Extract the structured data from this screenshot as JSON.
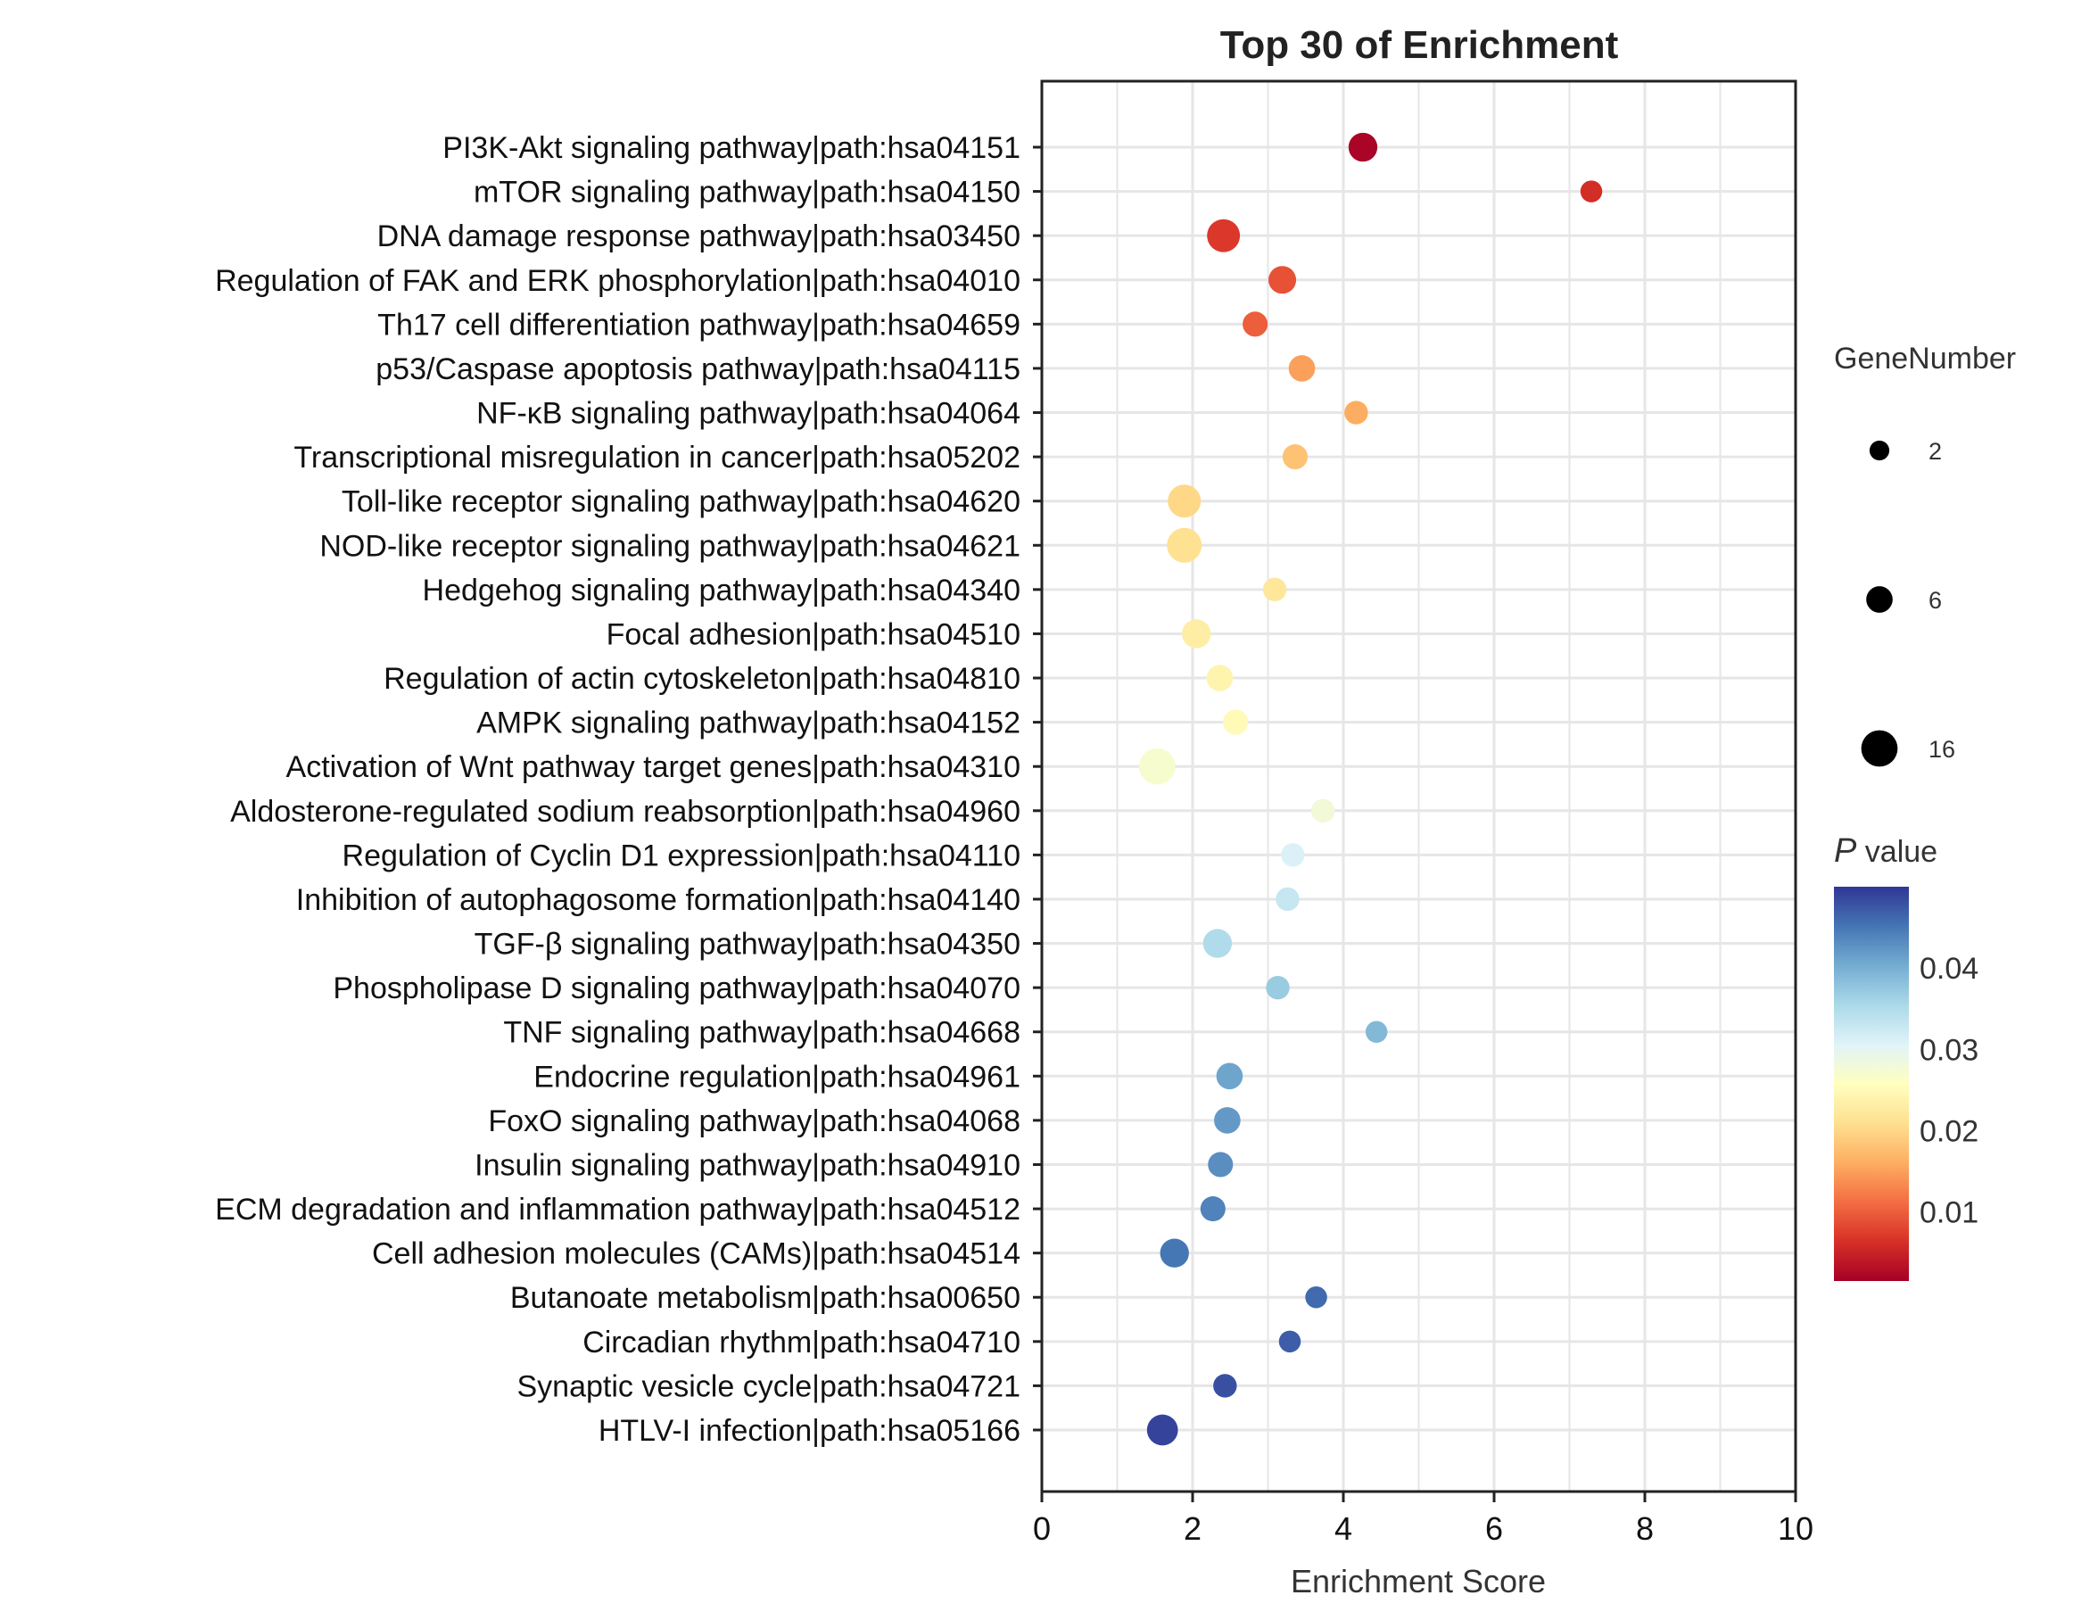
{
  "chart_data": {
    "type": "scatter",
    "title": "Top 30 of  Enrichment",
    "xlabel": "Enrichment Score",
    "ylabel": "",
    "xlim": [
      0,
      10
    ],
    "xticks": [
      0,
      2,
      4,
      6,
      8,
      10
    ],
    "grid": true,
    "categories": [
      "PI3K-Akt signaling pathway|path:hsa04151",
      "mTOR signaling pathway|path:hsa04150",
      "DNA damage response pathway|path:hsa03450",
      "Regulation of FAK and ERK phosphorylation|path:hsa04010",
      "Th17 cell differentiation pathway|path:hsa04659",
      "p53/Caspase apoptosis pathway|path:hsa04115",
      "NF-κB signaling pathway|path:hsa04064",
      "Transcriptional misregulation in cancer|path:hsa05202",
      "Toll-like receptor signaling pathway|path:hsa04620",
      "NOD-like receptor signaling pathway|path:hsa04621",
      "Hedgehog signaling pathway|path:hsa04340",
      "Focal adhesion|path:hsa04510",
      "Regulation of actin cytoskeleton|path:hsa04810",
      "AMPK signaling pathway|path:hsa04152",
      "Activation of Wnt pathway target genes|path:hsa04310",
      "Aldosterone-regulated sodium reabsorption|path:hsa04960",
      "Regulation of Cyclin D1 expression|path:hsa04110",
      "Inhibition of autophagosome formation|path:hsa04140",
      "TGF-β signaling pathway|path:hsa04350",
      "Phospholipase D signaling pathway|path:hsa04070",
      "TNF signaling pathway|path:hsa04668",
      "Endocrine regulation|path:hsa04961",
      "FoxO signaling pathway|path:hsa04068",
      "Insulin signaling pathway|path:hsa04910",
      "ECM degradation and inflammation pathway|path:hsa04512",
      "Cell adhesion molecules (CAMs)|path:hsa04514",
      "Butanoate metabolism|path:hsa00650",
      "Circadian rhythm|path:hsa04710",
      "Synaptic vesicle cycle|path:hsa04721",
      "HTLV-I infection|path:hsa05166"
    ],
    "enrichment_score": [
      4.26,
      7.29,
      2.41,
      3.19,
      2.83,
      3.45,
      4.17,
      3.36,
      1.89,
      1.89,
      3.09,
      2.05,
      2.36,
      2.57,
      1.53,
      3.73,
      3.33,
      3.26,
      2.33,
      3.13,
      4.44,
      2.49,
      2.46,
      2.37,
      2.27,
      1.76,
      3.64,
      3.29,
      2.43,
      1.6
    ],
    "p_value": [
      0.002,
      0.006,
      0.007,
      0.009,
      0.01,
      0.015,
      0.016,
      0.018,
      0.02,
      0.021,
      0.022,
      0.023,
      0.024,
      0.025,
      0.027,
      0.028,
      0.031,
      0.033,
      0.035,
      0.037,
      0.039,
      0.041,
      0.042,
      0.043,
      0.044,
      0.045,
      0.046,
      0.047,
      0.048,
      0.049
    ],
    "gene_number": [
      8,
      3,
      12,
      7,
      5,
      6,
      4,
      5,
      12,
      14,
      4,
      8,
      6,
      5,
      16,
      4,
      4,
      4,
      8,
      4,
      3,
      6,
      6,
      5,
      5,
      8,
      3,
      3,
      4,
      10
    ],
    "size_legend": {
      "title": "GeneNumber",
      "values": [
        2,
        6,
        16
      ],
      "labels": [
        "2",
        "6",
        "16"
      ]
    },
    "color_legend": {
      "title_italic": "P",
      "title_rest": " value",
      "colormap": "RdYlBu",
      "range": [
        0.0015,
        0.05
      ],
      "ticks": [
        0.01,
        0.02,
        0.03,
        0.04
      ],
      "tick_labels": [
        "0.01",
        "0.02",
        "0.03",
        "0.04"
      ],
      "colors": [
        "#a50026",
        "#d73027",
        "#f46d43",
        "#fdae61",
        "#fee090",
        "#ffffbf",
        "#e0f3f8",
        "#abd9e9",
        "#74add1",
        "#4575b4",
        "#313695"
      ]
    },
    "legend_position": "right"
  }
}
